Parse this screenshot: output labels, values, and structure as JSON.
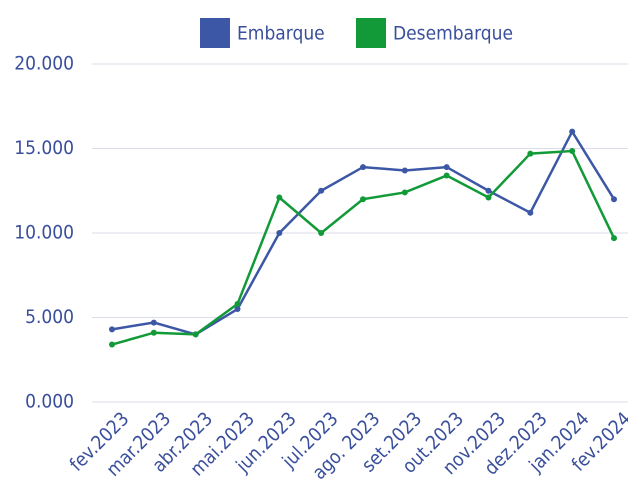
{
  "chart_data": {
    "type": "line",
    "categories": [
      "fev.2023",
      "mar.2023",
      "abr.2023",
      "mai.2023",
      "jun.2023",
      "jul.2023",
      "ago. 2023",
      "set.2023",
      "out.2023",
      "nov.2023",
      "dez.2023",
      "jan.2024",
      "fev.2024"
    ],
    "series": [
      {
        "name": "Embarque",
        "color": "#3c57a5",
        "values": [
          4300,
          4700,
          4000,
          5500,
          10000,
          12500,
          13900,
          13700,
          13900,
          12500,
          11200,
          16000,
          12000
        ]
      },
      {
        "name": "Desembarque",
        "color": "#129a38",
        "values": [
          3400,
          4100,
          4000,
          5800,
          12100,
          10000,
          12000,
          12400,
          13400,
          12100,
          14700,
          14850,
          9700
        ]
      }
    ],
    "ylim": [
      0,
      20000
    ],
    "yticks": [
      {
        "value": 0,
        "label": "0.000"
      },
      {
        "value": 5000,
        "label": "5.000"
      },
      {
        "value": 10000,
        "label": "10.000"
      },
      {
        "value": 15000,
        "label": "15.000"
      },
      {
        "value": 20000,
        "label": "20.000"
      }
    ],
    "grid": true,
    "legend": "top"
  }
}
